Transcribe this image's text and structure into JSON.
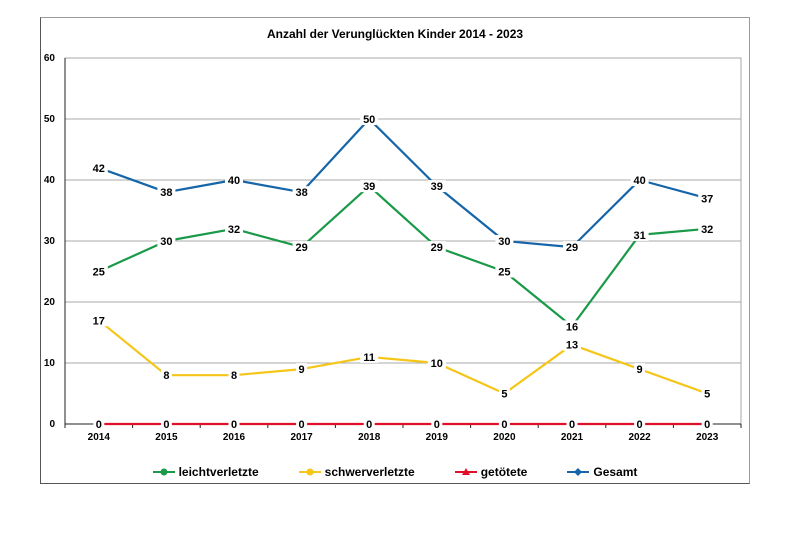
{
  "chart_data": {
    "type": "line",
    "title": "Anzahl der Verunglückten Kinder 2014 - 2023",
    "x": [
      "2014",
      "2015",
      "2016",
      "2017",
      "2018",
      "2019",
      "2020",
      "2021",
      "2022",
      "2023"
    ],
    "ylim": [
      0,
      60
    ],
    "yticks": [
      "0",
      "10",
      "20",
      "30",
      "40",
      "50",
      "60"
    ],
    "grid": true,
    "legend_position": "bottom",
    "series": [
      {
        "name": "leichtverletzte",
        "color": "#1a9a48",
        "marker": "circle",
        "values": [
          25,
          30,
          32,
          29,
          39,
          29,
          25,
          16,
          31,
          32
        ],
        "labels": [
          "25",
          "30",
          "32",
          "29",
          "39",
          "29",
          "25",
          "16",
          "31",
          "32"
        ]
      },
      {
        "name": "schwerverletzte",
        "color": "#f5c518",
        "marker": "circle",
        "values": [
          17,
          8,
          8,
          9,
          11,
          10,
          5,
          13,
          9,
          5
        ],
        "labels": [
          "17",
          "8",
          "8",
          "9",
          "11",
          "10",
          "5",
          "13",
          "9",
          "5"
        ]
      },
      {
        "name": "getötete",
        "color": "#e0102a",
        "marker": "triangle",
        "values": [
          0,
          0,
          0,
          0,
          0,
          0,
          0,
          0,
          0,
          0
        ],
        "labels": [
          "0",
          "0",
          "0",
          "0",
          "0",
          "0",
          "0",
          "0",
          "0",
          "0"
        ]
      },
      {
        "name": "Gesamt",
        "color": "#1565a8",
        "marker": "diamond",
        "values": [
          42,
          38,
          40,
          38,
          50,
          39,
          30,
          29,
          40,
          37
        ],
        "labels": [
          "42",
          "38",
          "40",
          "38",
          "50",
          "39",
          "30",
          "29",
          "40",
          "37"
        ]
      }
    ]
  }
}
